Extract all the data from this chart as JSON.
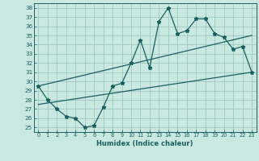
{
  "xlabel": "Humidex (Indice chaleur)",
  "xlim": [
    -0.5,
    23.5
  ],
  "ylim": [
    24.5,
    38.5
  ],
  "yticks": [
    25,
    26,
    27,
    28,
    29,
    30,
    31,
    32,
    33,
    34,
    35,
    36,
    37,
    38
  ],
  "xticks": [
    0,
    1,
    2,
    3,
    4,
    5,
    6,
    7,
    8,
    9,
    10,
    11,
    12,
    13,
    14,
    15,
    16,
    17,
    18,
    19,
    20,
    21,
    22,
    23
  ],
  "bg_color": "#c8e8e0",
  "grid_color": "#a0c8c0",
  "line_color": "#1a6060",
  "main_line_x": [
    0,
    1,
    2,
    3,
    4,
    5,
    6,
    7,
    8,
    9,
    10,
    11,
    12,
    13,
    14,
    15,
    16,
    17,
    18,
    19,
    20,
    21,
    22,
    23
  ],
  "main_line_y": [
    29.5,
    28.0,
    27.0,
    26.2,
    26.0,
    25.0,
    25.2,
    27.2,
    29.5,
    29.8,
    32.0,
    34.5,
    31.5,
    36.5,
    38.0,
    35.2,
    35.5,
    36.8,
    36.8,
    35.2,
    34.8,
    33.5,
    33.8,
    31.0
  ],
  "upper_line_x": [
    0,
    23
  ],
  "upper_line_y": [
    29.5,
    35.0
  ],
  "lower_line_x": [
    0,
    23
  ],
  "lower_line_y": [
    27.5,
    31.0
  ]
}
